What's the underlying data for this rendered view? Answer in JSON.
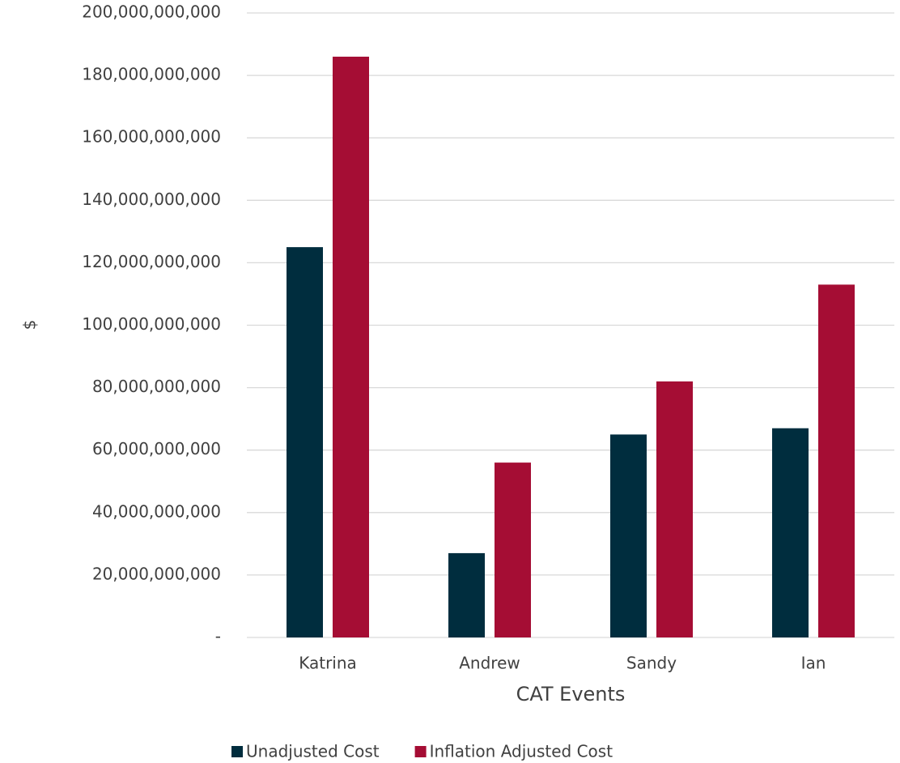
{
  "chart_data": {
    "type": "bar",
    "categories": [
      "Katrina",
      "Andrew",
      "Sandy",
      "Ian"
    ],
    "series": [
      {
        "name": "Unadjusted Cost",
        "color": "#002d3e",
        "values": [
          125000000000,
          27000000000,
          65000000000,
          67000000000
        ]
      },
      {
        "name": "Inflation Adjusted Cost",
        "color": "#a50d34",
        "values": [
          186000000000,
          56000000000,
          82000000000,
          113000000000
        ]
      }
    ],
    "x_label": "CAT Events",
    "y_label": "$",
    "ylim": [
      0,
      200000000000
    ],
    "yticks": [
      {
        "value": 0,
        "label": "-"
      },
      {
        "value": 20000000000,
        "label": "20,000,000,000"
      },
      {
        "value": 40000000000,
        "label": "40,000,000,000"
      },
      {
        "value": 60000000000,
        "label": "60,000,000,000"
      },
      {
        "value": 80000000000,
        "label": "80,000,000,000"
      },
      {
        "value": 100000000000,
        "label": "100,000,000,000"
      },
      {
        "value": 120000000000,
        "label": "120,000,000,000"
      },
      {
        "value": 140000000000,
        "label": "140,000,000,000"
      },
      {
        "value": 160000000000,
        "label": "160,000,000,000"
      },
      {
        "value": 180000000000,
        "label": "180,000,000,000"
      },
      {
        "value": 200000000000,
        "label": "200,000,000,000"
      }
    ],
    "grid": true,
    "legend": "bottom"
  }
}
